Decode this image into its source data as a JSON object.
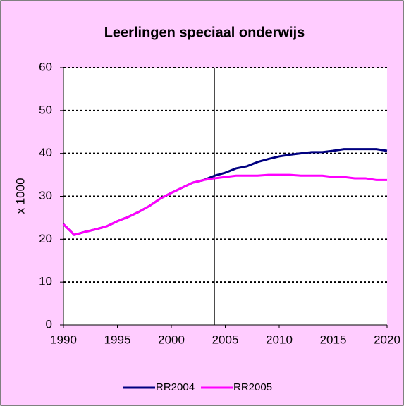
{
  "chart_data": {
    "type": "line",
    "title": "Leerlingen speciaal onderwijs",
    "y_label": "x 1000",
    "x": [
      1990,
      1991,
      1992,
      1993,
      1994,
      1995,
      1996,
      1997,
      1998,
      1999,
      2000,
      2001,
      2002,
      2003,
      2004,
      2005,
      2006,
      2007,
      2008,
      2009,
      2010,
      2011,
      2012,
      2013,
      2014,
      2015,
      2016,
      2017,
      2018,
      2019,
      2020
    ],
    "series": [
      {
        "name": "RR2004",
        "color": "#000080",
        "values": [
          23.5,
          21,
          21.7,
          22.3,
          23,
          24.2,
          25.2,
          26.4,
          27.8,
          29.5,
          30.8,
          32,
          33.2,
          33.8,
          34.8,
          35.5,
          36.5,
          37,
          38,
          38.7,
          39.3,
          39.7,
          40,
          40.3,
          40.3,
          40.6,
          41,
          41,
          41,
          41,
          40.6
        ]
      },
      {
        "name": "RR2005",
        "color": "#ff00ff",
        "values": [
          23.5,
          21,
          21.7,
          22.3,
          23,
          24.2,
          25.2,
          26.4,
          27.8,
          29.5,
          30.8,
          32,
          33.2,
          33.8,
          34.2,
          34.5,
          34.8,
          34.8,
          34.8,
          35,
          35,
          35,
          34.8,
          34.8,
          34.8,
          34.5,
          34.5,
          34.2,
          34.2,
          33.8,
          33.8
        ]
      }
    ],
    "xlim": [
      1990,
      2020
    ],
    "xticks": [
      1990,
      1995,
      2000,
      2005,
      2010,
      2015,
      2020
    ],
    "ylim": [
      0,
      60
    ],
    "yticks": [
      0,
      10,
      20,
      30,
      40,
      50,
      60
    ],
    "grid": true,
    "vline_x": 2004,
    "legend": "bottom"
  }
}
